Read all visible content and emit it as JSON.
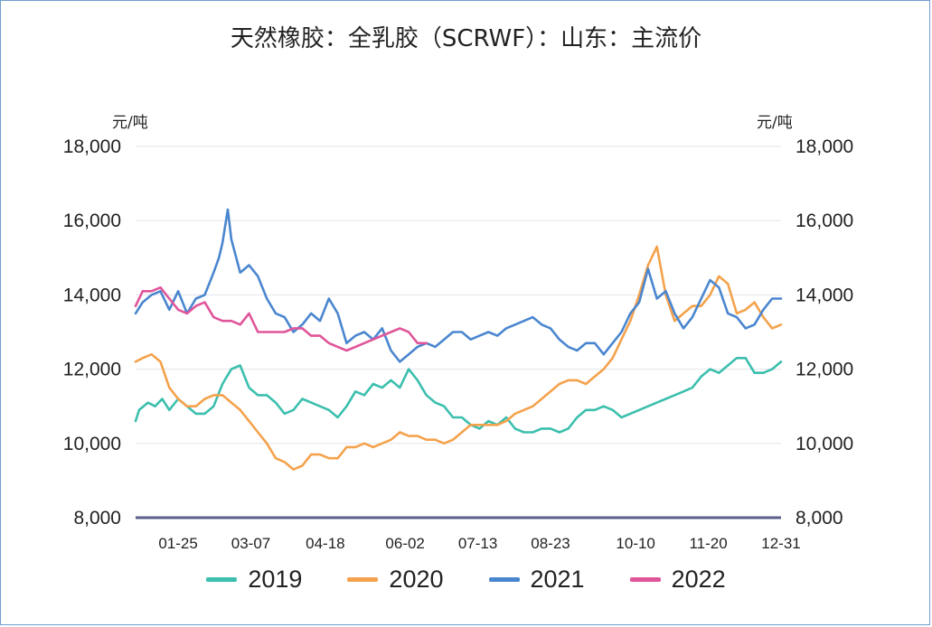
{
  "chart_data": {
    "type": "line",
    "title": "天然橡胶：全乳胶（SCRWF）：山东：主流价",
    "y_unit_left": "元/吨",
    "y_unit_right": "元/吨",
    "ylim": [
      8000,
      18000
    ],
    "yticks": [
      8000,
      10000,
      12000,
      14000,
      16000,
      18000
    ],
    "ytick_labels": [
      "8,000",
      "10,000",
      "12,000",
      "14,000",
      "16,000",
      "18,000"
    ],
    "xlim": [
      1,
      365
    ],
    "xticks": [
      25,
      66,
      108,
      153,
      194,
      235,
      283,
      324,
      365
    ],
    "xtick_labels": [
      "01-25",
      "03-07",
      "04-18",
      "06-02",
      "07-13",
      "08-23",
      "10-10",
      "11-20",
      "12-31"
    ],
    "grid": true,
    "legend_position": "bottom",
    "series": [
      {
        "name": "2019",
        "color": "#3cbfae",
        "x": [
          1,
          3,
          8,
          12,
          16,
          20,
          25,
          30,
          35,
          40,
          45,
          50,
          55,
          60,
          65,
          70,
          75,
          80,
          85,
          90,
          95,
          100,
          105,
          110,
          115,
          120,
          125,
          130,
          135,
          140,
          145,
          150,
          155,
          160,
          165,
          170,
          175,
          180,
          185,
          190,
          195,
          200,
          205,
          210,
          215,
          220,
          225,
          230,
          235,
          240,
          245,
          250,
          255,
          260,
          265,
          270,
          275,
          280,
          285,
          290,
          295,
          300,
          305,
          310,
          315,
          320,
          325,
          330,
          335,
          340,
          345,
          350,
          355,
          360,
          365
        ],
        "values": [
          10600,
          10900,
          11100,
          11000,
          11200,
          10900,
          11200,
          11000,
          10800,
          10800,
          11000,
          11600,
          12000,
          12100,
          11500,
          11300,
          11300,
          11100,
          10800,
          10900,
          11200,
          11100,
          11000,
          10900,
          10700,
          11000,
          11400,
          11300,
          11600,
          11500,
          11700,
          11500,
          12000,
          11700,
          11300,
          11100,
          11000,
          10700,
          10700,
          10500,
          10400,
          10600,
          10500,
          10700,
          10400,
          10300,
          10300,
          10400,
          10400,
          10300,
          10400,
          10700,
          10900,
          10900,
          11000,
          10900,
          10700,
          10800,
          10900,
          11000,
          11100,
          11200,
          11300,
          11400,
          11500,
          11800,
          12000,
          11900,
          12100,
          12300,
          12300,
          11900,
          11900,
          12000,
          12200
        ]
      },
      {
        "name": "2020",
        "color": "#f4a24c",
        "x": [
          1,
          5,
          10,
          15,
          20,
          25,
          30,
          35,
          40,
          45,
          50,
          55,
          60,
          65,
          70,
          75,
          80,
          85,
          90,
          95,
          100,
          105,
          110,
          115,
          120,
          125,
          130,
          135,
          140,
          145,
          150,
          155,
          160,
          165,
          170,
          175,
          180,
          185,
          190,
          195,
          200,
          205,
          210,
          215,
          220,
          225,
          230,
          235,
          240,
          245,
          250,
          255,
          260,
          265,
          270,
          275,
          280,
          285,
          290,
          295,
          300,
          305,
          310,
          315,
          320,
          325,
          330,
          335,
          340,
          345,
          350,
          355,
          360,
          365
        ],
        "values": [
          12200,
          12300,
          12400,
          12200,
          11500,
          11200,
          11000,
          11000,
          11200,
          11300,
          11300,
          11100,
          10900,
          10600,
          10300,
          10000,
          9600,
          9500,
          9300,
          9400,
          9700,
          9700,
          9600,
          9600,
          9900,
          9900,
          10000,
          9900,
          10000,
          10100,
          10300,
          10200,
          10200,
          10100,
          10100,
          10000,
          10100,
          10300,
          10500,
          10500,
          10500,
          10500,
          10600,
          10800,
          10900,
          11000,
          11200,
          11400,
          11600,
          11700,
          11700,
          11600,
          11800,
          12000,
          12300,
          12800,
          13300,
          14000,
          14800,
          15300,
          14000,
          13300,
          13500,
          13700,
          13700,
          14000,
          14500,
          14300,
          13500,
          13600,
          13800,
          13400,
          13100,
          13200
        ]
      },
      {
        "name": "2021",
        "color": "#4a86cf",
        "x": [
          1,
          5,
          10,
          15,
          20,
          25,
          30,
          35,
          40,
          45,
          48,
          50,
          53,
          55,
          60,
          65,
          70,
          75,
          80,
          85,
          90,
          95,
          100,
          105,
          110,
          115,
          120,
          125,
          130,
          135,
          140,
          145,
          150,
          155,
          160,
          165,
          170,
          175,
          180,
          185,
          190,
          195,
          200,
          205,
          210,
          215,
          220,
          225,
          230,
          235,
          240,
          245,
          250,
          255,
          260,
          265,
          270,
          275,
          280,
          285,
          290,
          295,
          300,
          305,
          310,
          315,
          320,
          325,
          330,
          335,
          340,
          345,
          350,
          355,
          360,
          365
        ],
        "values": [
          13500,
          13800,
          14000,
          14100,
          13600,
          14100,
          13500,
          13900,
          14000,
          14600,
          15000,
          15400,
          16300,
          15500,
          14600,
          14800,
          14500,
          13900,
          13500,
          13400,
          13000,
          13200,
          13500,
          13300,
          13900,
          13500,
          12700,
          12900,
          13000,
          12800,
          13100,
          12500,
          12200,
          12400,
          12600,
          12700,
          12600,
          12800,
          13000,
          13000,
          12800,
          12900,
          13000,
          12900,
          13100,
          13200,
          13300,
          13400,
          13200,
          13100,
          12800,
          12600,
          12500,
          12700,
          12700,
          12400,
          12700,
          13000,
          13500,
          13800,
          14700,
          13900,
          14100,
          13500,
          13100,
          13400,
          13900,
          14400,
          14200,
          13500,
          13400,
          13100,
          13200,
          13600,
          13900,
          13900
        ]
      },
      {
        "name": "2022",
        "color": "#e0559a",
        "x": [
          1,
          5,
          10,
          15,
          20,
          25,
          30,
          35,
          40,
          45,
          50,
          55,
          60,
          65,
          70,
          75,
          80,
          85,
          90,
          95,
          100,
          105,
          110,
          115,
          120,
          125,
          130,
          135,
          140,
          145,
          150,
          155,
          160,
          165
        ],
        "values": [
          13700,
          14100,
          14100,
          14200,
          13900,
          13600,
          13500,
          13700,
          13800,
          13400,
          13300,
          13300,
          13200,
          13500,
          13000,
          13000,
          13000,
          13000,
          13100,
          13100,
          12900,
          12900,
          12700,
          12600,
          12500,
          12600,
          12700,
          12800,
          12900,
          13000,
          13100,
          13000,
          12700,
          12700
        ]
      }
    ]
  }
}
